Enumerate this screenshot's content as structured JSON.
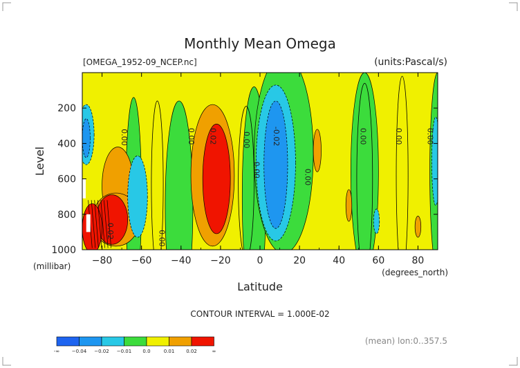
{
  "chart_data": {
    "type": "heatmap",
    "title": "Monthly Mean Omega",
    "file_label": "[OMEGA_1952-09_NCEP.nc]",
    "units_label": "(units:Pascal/s)",
    "xlabel": "Latitude",
    "x_unit_label": "(degrees_north)",
    "ylabel": "Level",
    "y_unit_label": "(millibar)",
    "xlim": [
      -90,
      90
    ],
    "ylim": [
      1000,
      0
    ],
    "x_ticks": [
      -80,
      -60,
      -40,
      -20,
      0,
      20,
      40,
      60,
      80
    ],
    "x_tick_labels": [
      "−80",
      "−60",
      "−40",
      "−20",
      "0",
      "20",
      "40",
      "60",
      "80"
    ],
    "y_ticks": [
      200,
      400,
      600,
      800,
      1000
    ],
    "y_tick_labels": [
      "200",
      "400",
      "600",
      "800",
      "1000"
    ],
    "contour_interval_text": "CONTOUR INTERVAL = 1.000E-02",
    "footnote": "(mean) lon:0..357.5",
    "colorbar": {
      "colors": [
        "#1e64f0",
        "#1e96f0",
        "#28c8e6",
        "#3cdc3c",
        "#f0f000",
        "#f0a000",
        "#f01400"
      ],
      "labels": [
        "-∞",
        "−0.04",
        "−0.02",
        "−0.01",
        "0.0",
        "0.01",
        "0.02",
        "∞"
      ]
    },
    "contour_labels": [
      {
        "text": "0.00",
        "lat": -70,
        "lev": 365
      },
      {
        "text": "0.00",
        "lat": -36,
        "lev": 360
      },
      {
        "text": "0.02",
        "lat": -25,
        "lev": 360
      },
      {
        "text": "0.00",
        "lat": -8,
        "lev": 380
      },
      {
        "text": "-0.02",
        "lat": 7,
        "lev": 360
      },
      {
        "text": "0.00",
        "lat": -3,
        "lev": 550
      },
      {
        "text": "0.00",
        "lat": 23,
        "lev": 590
      },
      {
        "text": "0.00",
        "lat": 51,
        "lev": 360
      },
      {
        "text": "0.00",
        "lat": 69,
        "lev": 360
      },
      {
        "text": "0.00",
        "lat": 85,
        "lev": 360
      },
      {
        "text": "0.00",
        "lat": -51,
        "lev": 935
      },
      {
        "text": "0.02",
        "lat": -77,
        "lev": 895
      }
    ],
    "regions": [
      {
        "level": 0.01,
        "cx": -72,
        "cy": 640,
        "rx": 8,
        "ry": 220
      },
      {
        "level": 0.01,
        "cx": -73,
        "cy": 830,
        "rx": 12,
        "ry": 150
      },
      {
        "level": 0.02,
        "cx": -75,
        "cy": 830,
        "rx": 8,
        "ry": 140
      },
      {
        "level": 0.02,
        "cx": -85,
        "cy": 880,
        "rx": 5,
        "ry": 140
      },
      {
        "level": -0.01,
        "cx": -62,
        "cy": 700,
        "rx": 5,
        "ry": 230
      },
      {
        "level": -0.01,
        "cx": -88,
        "cy": 350,
        "rx": 4,
        "ry": 170
      },
      {
        "level": -0.02,
        "cx": -88,
        "cy": 370,
        "rx": 2,
        "ry": 110
      },
      {
        "level": 0.01,
        "cx": -24,
        "cy": 580,
        "rx": 11,
        "ry": 400
      },
      {
        "level": 0.02,
        "cx": -22,
        "cy": 600,
        "rx": 7,
        "ry": 310
      },
      {
        "level": -0.01,
        "cx": 8,
        "cy": 510,
        "rx": 10,
        "ry": 440
      },
      {
        "level": -0.02,
        "cx": 8,
        "cy": 520,
        "rx": 6,
        "ry": 360
      },
      {
        "level": 0.01,
        "cx": 29,
        "cy": 440,
        "rx": 2,
        "ry": 120
      },
      {
        "level": 0.01,
        "cx": 45,
        "cy": 750,
        "rx": 1.5,
        "ry": 90
      },
      {
        "level": 0.01,
        "cx": 80,
        "cy": 870,
        "rx": 1.5,
        "ry": 60
      },
      {
        "level": -0.01,
        "cx": 59,
        "cy": 840,
        "rx": 1.5,
        "ry": 70
      },
      {
        "level": -0.01,
        "cx": 89,
        "cy": 500,
        "rx": 2,
        "ry": 250
      }
    ],
    "zero_gaps": [
      {
        "cx": -52,
        "cy": 630,
        "rx": 3,
        "ry": 470
      },
      {
        "cx": -7,
        "cy": 620,
        "rx": 4,
        "ry": 430
      },
      {
        "cx": 53,
        "cy": 600,
        "rx": 4,
        "ry": 540
      },
      {
        "cx": 72,
        "cy": 580,
        "rx": 3,
        "ry": 560
      }
    ],
    "green_bands": [
      {
        "cx": -64,
        "cy": 700,
        "rx": 4,
        "ry": 560
      },
      {
        "cx": -41,
        "cy": 760,
        "rx": 7,
        "ry": 600
      },
      {
        "cx": -3,
        "cy": 700,
        "rx": 6,
        "ry": 620
      },
      {
        "cx": 12,
        "cy": 460,
        "rx": 15,
        "ry": 560
      },
      {
        "cx": 53,
        "cy": 560,
        "rx": 7,
        "ry": 560
      },
      {
        "cx": 90,
        "cy": 560,
        "rx": 4,
        "ry": 560
      }
    ]
  }
}
